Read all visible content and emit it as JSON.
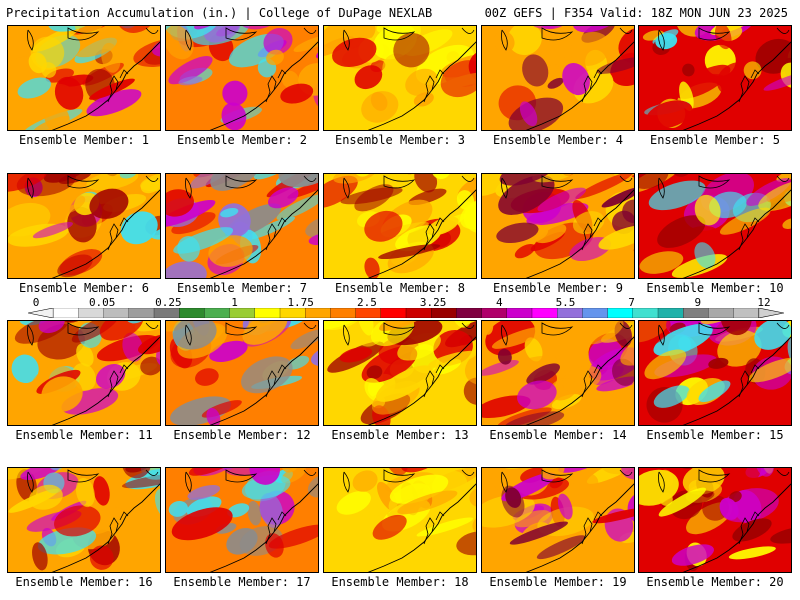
{
  "header": {
    "title": "Precipitation Accumulation (in.) | College of DuPage NEXLAB",
    "run_info": "00Z GEFS | F354 Valid: 18Z MON JUN 23 2025"
  },
  "colorbar": {
    "tick_labels": [
      "0",
      "0.05",
      "0.25",
      "1",
      "1.75",
      "2.5",
      "3.25",
      "4",
      "5.5",
      "7",
      "9",
      "12"
    ],
    "colors": [
      "#ffffff",
      "#d9d9d9",
      "#bdbdbd",
      "#9e9e9e",
      "#7a7a7a",
      "#2e8b2e",
      "#4caf50",
      "#9acd32",
      "#ffff00",
      "#ffd700",
      "#ffa500",
      "#ff7f00",
      "#ff4500",
      "#ff0000",
      "#cc0000",
      "#990000",
      "#800040",
      "#b0006a",
      "#cc00cc",
      "#ff00ff",
      "#9370db",
      "#6495ed",
      "#00ffff",
      "#40e0d0",
      "#20b2aa",
      "#808080",
      "#a9a9a9",
      "#c0c0c0"
    ]
  },
  "panels": [
    {
      "label": "Ensemble Member: 1"
    },
    {
      "label": "Ensemble Member: 2"
    },
    {
      "label": "Ensemble Member: 3"
    },
    {
      "label": "Ensemble Member: 4"
    },
    {
      "label": "Ensemble Member: 5"
    },
    {
      "label": "Ensemble Member: 6"
    },
    {
      "label": "Ensemble Member: 7"
    },
    {
      "label": "Ensemble Member: 8"
    },
    {
      "label": "Ensemble Member: 9"
    },
    {
      "label": "Ensemble Member: 10"
    },
    {
      "label": "Ensemble Member: 11"
    },
    {
      "label": "Ensemble Member: 12"
    },
    {
      "label": "Ensemble Member: 13"
    },
    {
      "label": "Ensemble Member: 14"
    },
    {
      "label": "Ensemble Member: 15"
    },
    {
      "label": "Ensemble Member: 16"
    },
    {
      "label": "Ensemble Member: 17"
    },
    {
      "label": "Ensemble Member: 18"
    },
    {
      "label": "Ensemble Member: 19"
    },
    {
      "label": "Ensemble Member: 20"
    }
  ],
  "palette": {
    "yellow": "#ffff00",
    "gold": "#ffd700",
    "orange": "#ffa500",
    "darkorange": "#ff7f00",
    "red": "#e00000",
    "darkred": "#a00000",
    "maroon": "#800030",
    "magenta": "#cc00cc",
    "violet": "#9370db",
    "cyan": "#40e0f0",
    "green": "#4caf50",
    "gray": "#8c8c8c"
  }
}
